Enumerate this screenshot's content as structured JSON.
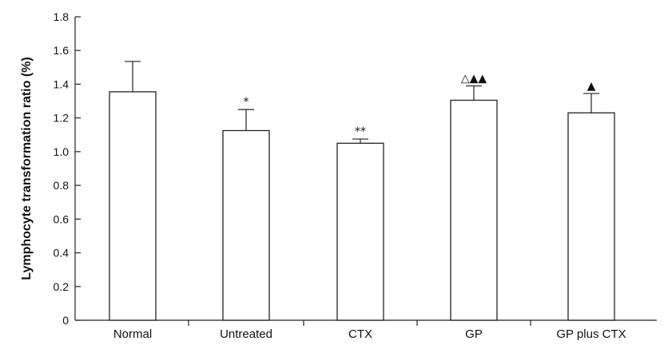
{
  "chart_data": {
    "type": "bar",
    "title": "",
    "xlabel": "",
    "ylabel": "Lymphocyte transformation ratio (%)",
    "ylim": [
      0,
      1.8
    ],
    "yticks": [
      "0",
      "0.2",
      "0.4",
      "0.6",
      "0.8",
      "1.0",
      "1.2",
      "1.4",
      "1.6",
      "1.8"
    ],
    "grid": false,
    "categories": [
      "Normal",
      "Untreated",
      "CTX",
      "GP",
      "GP plus CTX"
    ],
    "values": [
      1.355,
      1.125,
      1.05,
      1.305,
      1.23
    ],
    "errors": [
      0.18,
      0.125,
      0.025,
      0.085,
      0.115
    ],
    "annotations": [
      "",
      "*",
      "**",
      "△▲▲",
      "▲"
    ],
    "colors": {
      "bar_fill": "#ffffff",
      "stroke": "#222222"
    }
  }
}
